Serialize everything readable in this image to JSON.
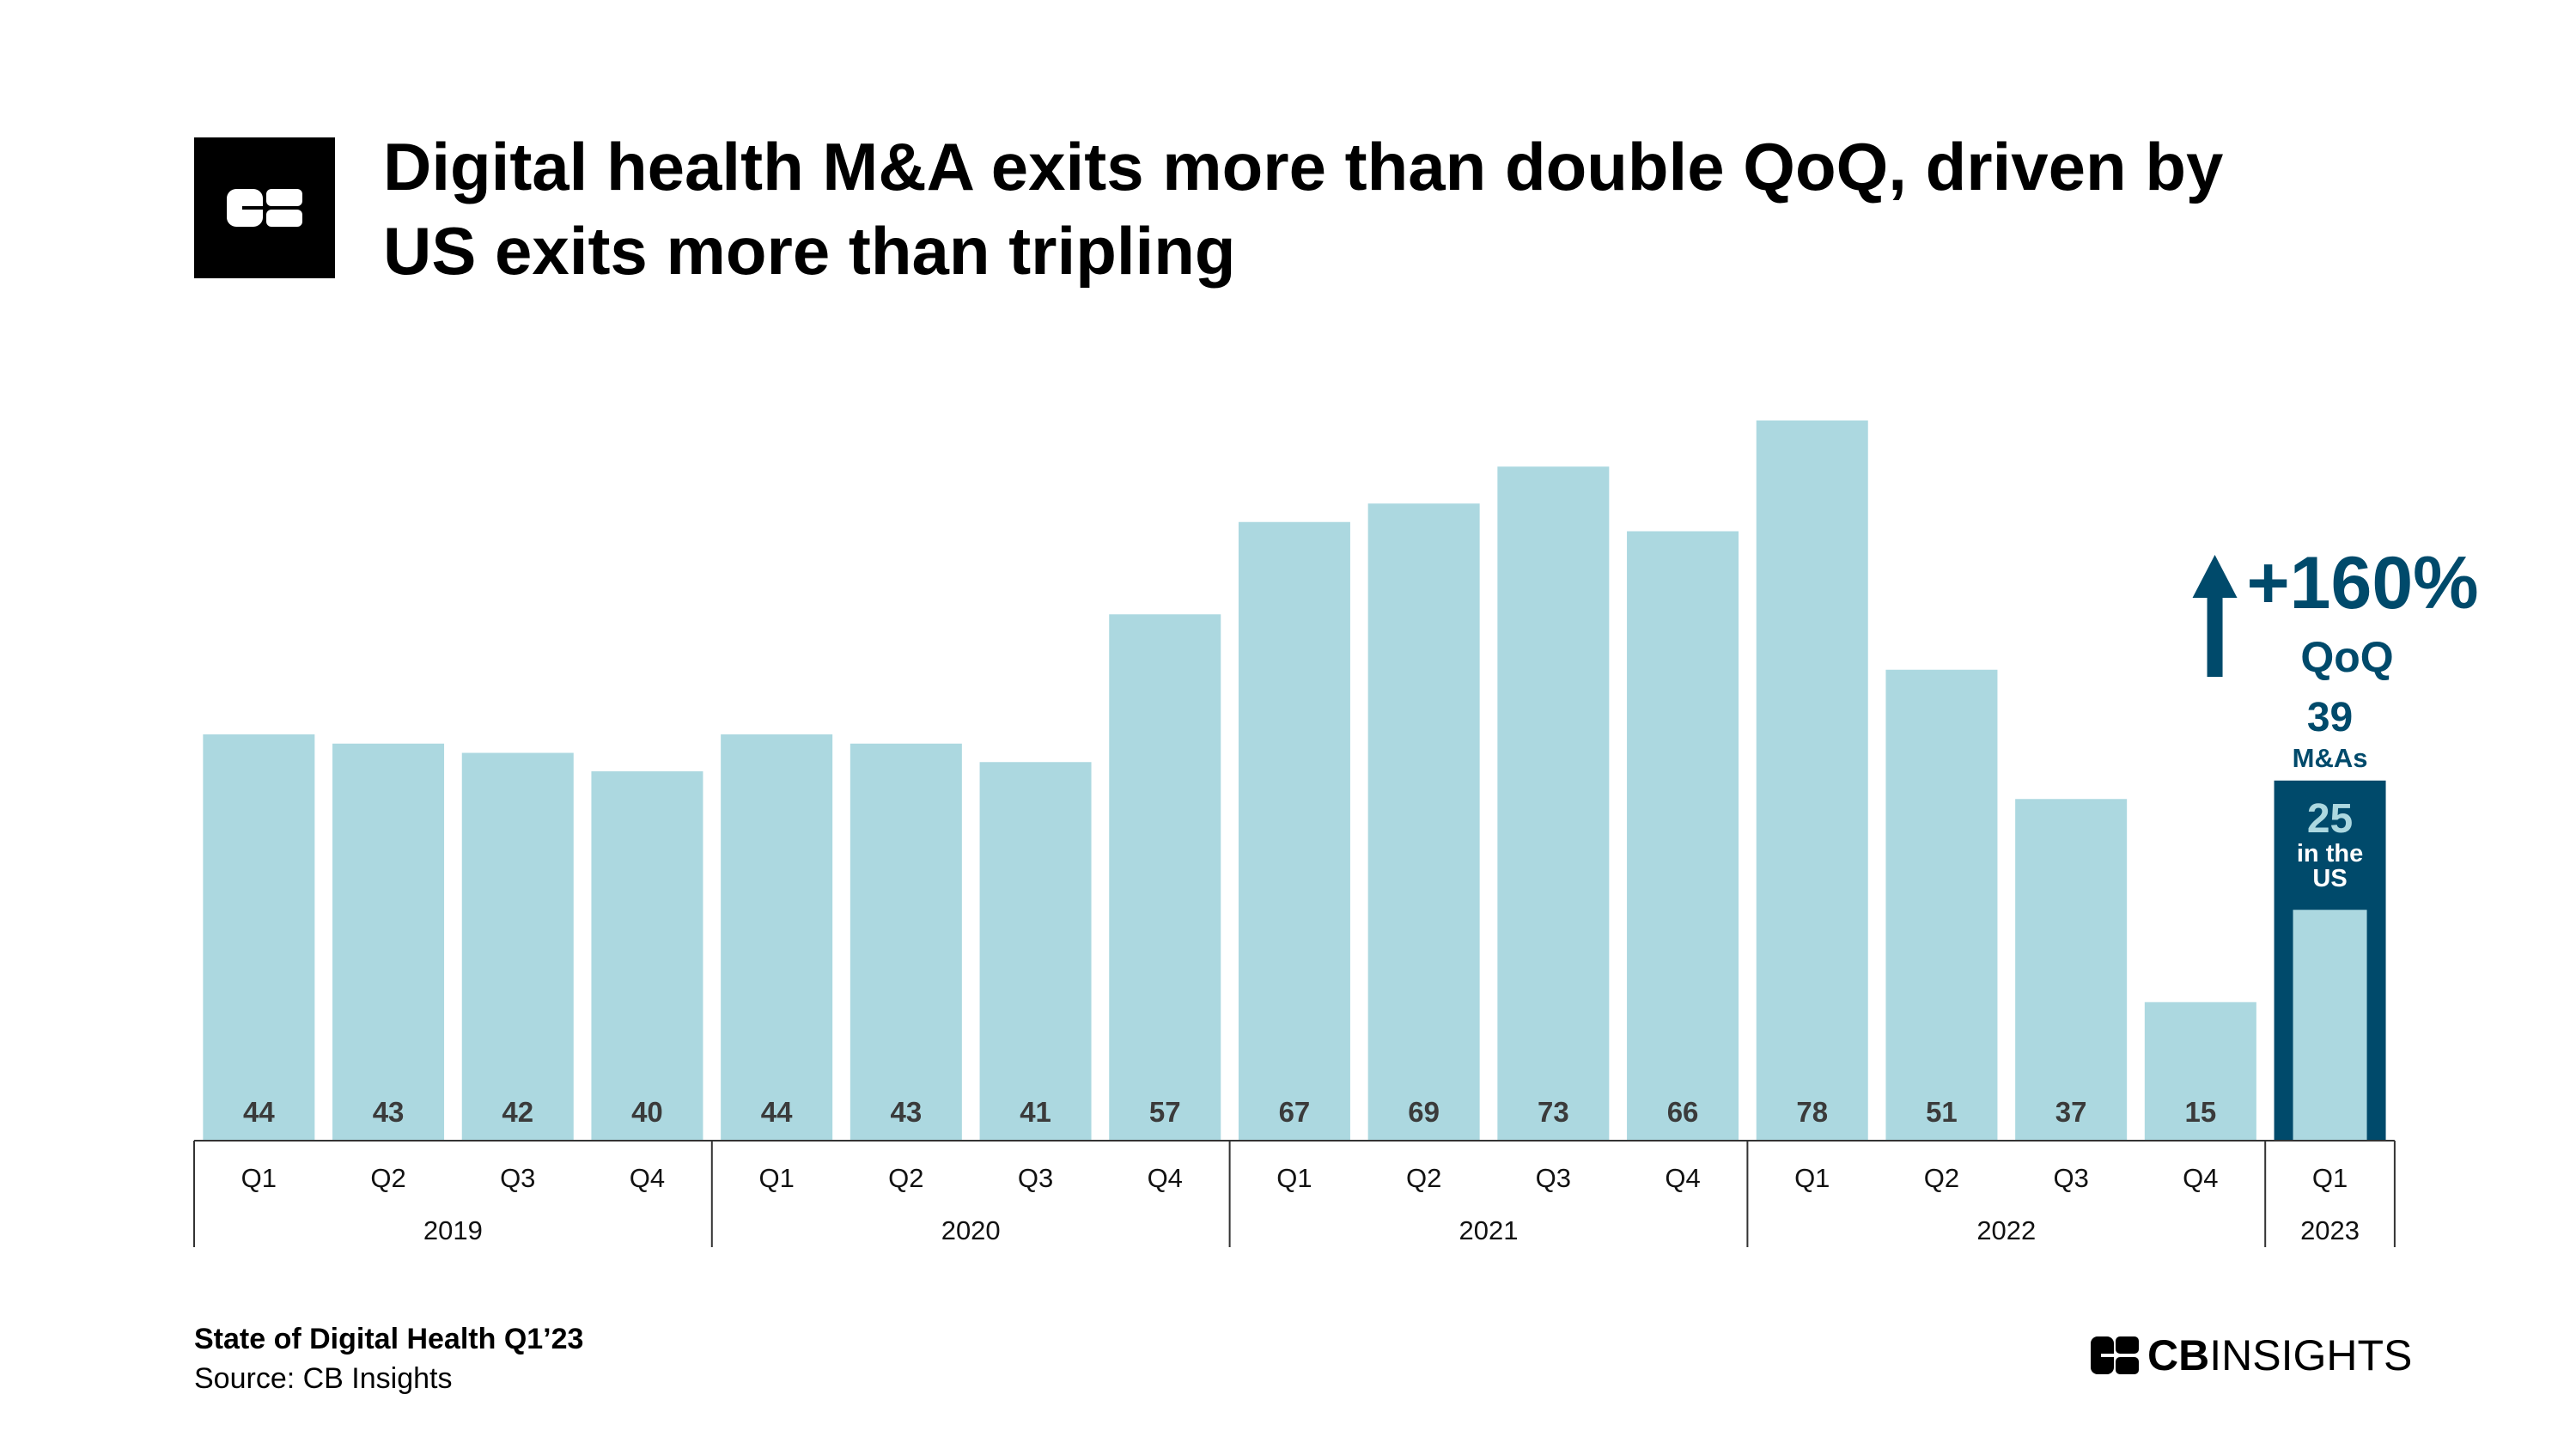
{
  "header": {
    "title_line1": "Digital health M&A exits more than double QoQ, driven by",
    "title_line2": "US exits more than tripling"
  },
  "chart_data": {
    "type": "bar",
    "quarters": [
      "Q1",
      "Q2",
      "Q3",
      "Q4",
      "Q1",
      "Q2",
      "Q3",
      "Q4",
      "Q1",
      "Q2",
      "Q3",
      "Q4",
      "Q1",
      "Q2",
      "Q3",
      "Q4",
      "Q1"
    ],
    "years": [
      "2019",
      "2020",
      "2021",
      "2022",
      "2023"
    ],
    "values": [
      44,
      43,
      42,
      40,
      44,
      43,
      41,
      57,
      67,
      69,
      73,
      66,
      78,
      51,
      37,
      15,
      39
    ],
    "ylim": [
      0,
      80
    ],
    "highlight": {
      "index": 16,
      "total_value": "39",
      "total_label": "M&As",
      "us_value": 25,
      "us_value_label": "25",
      "us_label_line1": "in the",
      "us_label_line2": "US",
      "change": "+160%",
      "change_label": "QoQ"
    },
    "colors": {
      "bar": "#acd8e0",
      "highlight": "#004a6b",
      "value_text": "#3b3b3b",
      "axis": "#333333"
    }
  },
  "footer": {
    "report": "State of Digital Health Q1’23",
    "source": "Source: CB Insights",
    "brand_bold": "CB",
    "brand_light": "INSIGHTS"
  }
}
